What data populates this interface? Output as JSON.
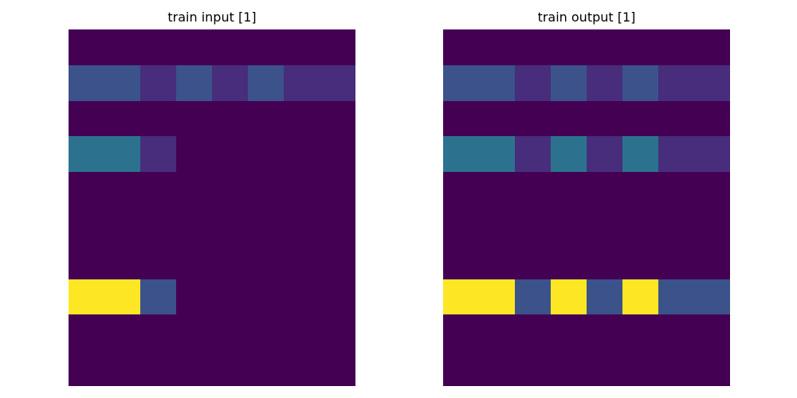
{
  "chart_data": [
    {
      "type": "heatmap",
      "title": "train input [1]",
      "colormap": "viridis",
      "vmin": 0,
      "vmax": 9,
      "rows": 10,
      "cols": 8,
      "grid": [
        [
          0,
          0,
          0,
          0,
          0,
          0,
          0,
          0
        ],
        [
          2,
          2,
          1,
          2,
          1,
          2,
          1,
          1
        ],
        [
          0,
          0,
          0,
          0,
          0,
          0,
          0,
          0
        ],
        [
          3,
          3,
          1,
          0,
          0,
          0,
          0,
          0
        ],
        [
          0,
          0,
          0,
          0,
          0,
          0,
          0,
          0
        ],
        [
          0,
          0,
          0,
          0,
          0,
          0,
          0,
          0
        ],
        [
          0,
          0,
          0,
          0,
          0,
          0,
          0,
          0
        ],
        [
          9,
          9,
          2,
          0,
          0,
          0,
          0,
          0
        ],
        [
          0,
          0,
          0,
          0,
          0,
          0,
          0,
          0
        ],
        [
          0,
          0,
          0,
          0,
          0,
          0,
          0,
          0
        ]
      ]
    },
    {
      "type": "heatmap",
      "title": "train output [1]",
      "colormap": "viridis",
      "vmin": 0,
      "vmax": 9,
      "rows": 10,
      "cols": 8,
      "grid": [
        [
          0,
          0,
          0,
          0,
          0,
          0,
          0,
          0
        ],
        [
          2,
          2,
          1,
          2,
          1,
          2,
          1,
          1
        ],
        [
          0,
          0,
          0,
          0,
          0,
          0,
          0,
          0
        ],
        [
          3,
          3,
          1,
          3,
          1,
          3,
          1,
          1
        ],
        [
          0,
          0,
          0,
          0,
          0,
          0,
          0,
          0
        ],
        [
          0,
          0,
          0,
          0,
          0,
          0,
          0,
          0
        ],
        [
          0,
          0,
          0,
          0,
          0,
          0,
          0,
          0
        ],
        [
          9,
          9,
          2,
          9,
          2,
          9,
          2,
          2
        ],
        [
          0,
          0,
          0,
          0,
          0,
          0,
          0,
          0
        ],
        [
          0,
          0,
          0,
          0,
          0,
          0,
          0,
          0
        ]
      ]
    }
  ],
  "palette": {
    "0": "#440154",
    "1": "#472d7b",
    "2": "#3b528b",
    "3": "#2c728e",
    "9": "#fde725"
  }
}
